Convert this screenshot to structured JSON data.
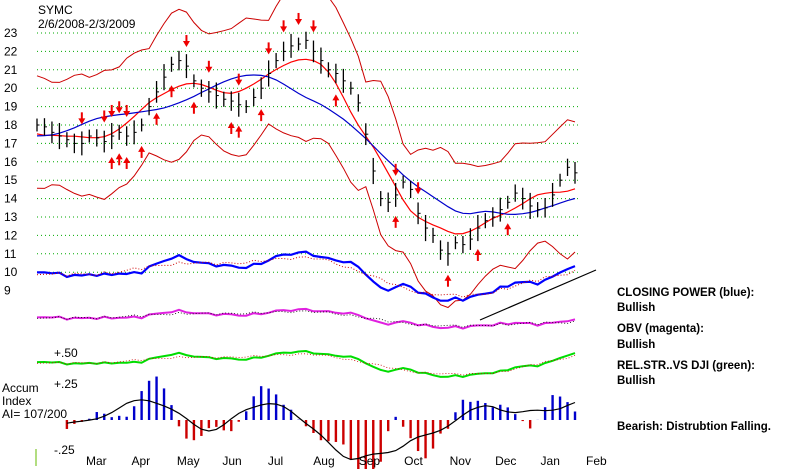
{
  "chart_data": {
    "type": "line",
    "title": "SYMC",
    "subtitle": "2/6/2008-2/3/2009",
    "ylim": [
      9,
      23
    ],
    "y_ticks": [
      "9",
      "10",
      "11",
      "12",
      "13",
      "14",
      "15",
      "16",
      "17",
      "18",
      "19",
      "20",
      "21",
      "22",
      "23"
    ],
    "x_ticks": [
      "Mar",
      "Apr",
      "May",
      "Jun",
      "Jul",
      "Aug",
      "Sep",
      "Oct",
      "Nov",
      "Dec",
      "Jan",
      "Feb"
    ],
    "grid": true,
    "price_close": [
      18.0,
      17.9,
      17.6,
      17.4,
      17.2,
      17.0,
      17.0,
      17.4,
      17.3,
      17.1,
      17.4,
      17.6,
      17.4,
      17.6,
      18.0,
      19.0,
      19.8,
      20.6,
      21.3,
      21.5,
      21.2,
      20.4,
      20.0,
      19.8,
      19.6,
      19.4,
      19.3,
      19.1,
      19.0,
      19.5,
      20.0,
      20.8,
      21.5,
      22.0,
      22.3,
      22.4,
      22.6,
      22.0,
      21.5,
      21.0,
      20.8,
      20.4,
      20.0,
      19.2,
      17.5,
      15.5,
      14.0,
      13.8,
      14.2,
      14.9,
      14.5,
      13.2,
      12.4,
      12.0,
      11.2,
      11.0,
      11.6,
      11.5,
      11.8,
      12.4,
      12.8,
      13.0,
      13.4,
      13.8,
      14.3,
      14.0,
      13.6,
      13.4,
      13.5,
      14.2,
      15.0,
      15.7,
      15.4
    ],
    "indicators": {
      "accum_index_label": "Accum",
      "accum_index_sub": "Index",
      "ai_value": "AI= 107/200",
      "accum_ticks": [
        "+.50",
        "+.25",
        "-.25"
      ]
    },
    "annotations": [
      {
        "title": "CLOSING POWER (blue):",
        "status": "Bullish"
      },
      {
        "title": "OBV (magenta):",
        "status": "Bullish"
      },
      {
        "title": "REL.STR..VS DJI (green):",
        "status": "Bullish"
      },
      {
        "title": "Bearish:  Distrubtion Falling.",
        "status": ""
      }
    ],
    "signals": {
      "sell_arrow_indices": [
        6,
        9,
        10,
        11,
        12,
        20,
        23,
        27,
        31,
        33,
        35,
        37,
        48,
        51
      ],
      "buy_arrow_indices": [
        10,
        11,
        12,
        14,
        16,
        18,
        21,
        26,
        27,
        30,
        40,
        48,
        55,
        59,
        63
      ]
    },
    "colors": {
      "price": "#000000",
      "band": "#cc0000",
      "ma": "#0000cc",
      "red_ma": "#ff0000",
      "closing_power": "#0000ff",
      "obv": "#e020e0",
      "rel_strength": "#00dd00",
      "accum_pos": "#0000cc",
      "accum_neg": "#cc0000",
      "grid": "#00aa00",
      "arrow": "#ee0000"
    }
  }
}
